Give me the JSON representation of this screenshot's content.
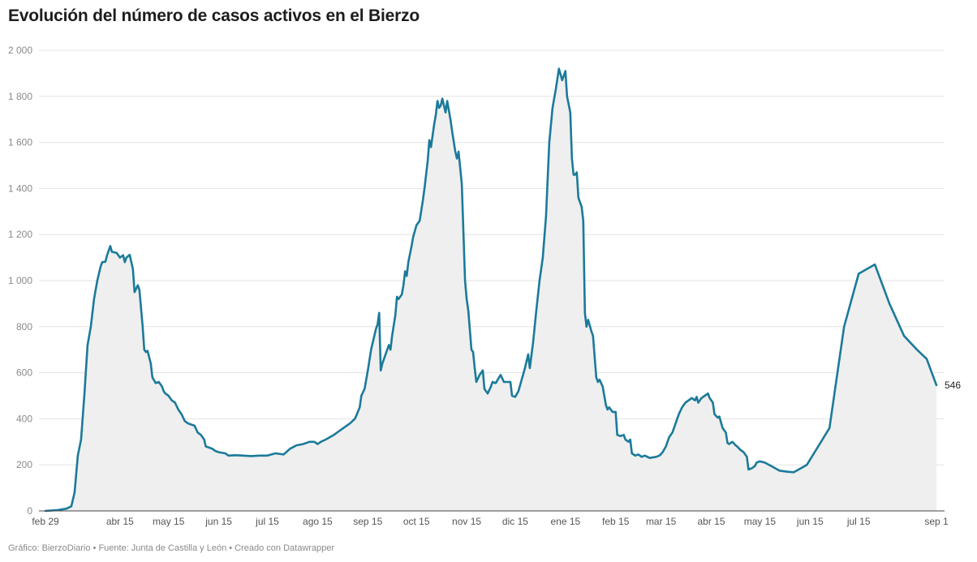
{
  "chart_data": {
    "type": "area",
    "title": "Evolución del número de casos activos en el Bierzo",
    "xlabel": "",
    "ylabel": "",
    "ylim": [
      0,
      2000
    ],
    "yticks": [
      0,
      200,
      400,
      600,
      800,
      1000,
      1200,
      1400,
      1600,
      1800,
      2000
    ],
    "ytick_labels": [
      "0",
      "200",
      "400",
      "600",
      "800",
      "1 000",
      "1 200",
      "1 400",
      "1 600",
      "1 800",
      "2 000"
    ],
    "xlim": [
      "2020-02-29",
      "2021-09-01"
    ],
    "xticks": [
      {
        "date": "2020-02-29",
        "label": "feb 29"
      },
      {
        "date": "2020-04-15",
        "label": "abr 15"
      },
      {
        "date": "2020-05-15",
        "label": "may 15"
      },
      {
        "date": "2020-06-15",
        "label": "jun 15"
      },
      {
        "date": "2020-07-15",
        "label": "jul 15"
      },
      {
        "date": "2020-08-15",
        "label": "ago 15"
      },
      {
        "date": "2020-09-15",
        "label": "sep 15"
      },
      {
        "date": "2020-10-15",
        "label": "oct 15"
      },
      {
        "date": "2020-11-15",
        "label": "nov 15"
      },
      {
        "date": "2020-12-15",
        "label": "dic 15"
      },
      {
        "date": "2021-01-15",
        "label": "ene 15"
      },
      {
        "date": "2021-02-15",
        "label": "feb 15"
      },
      {
        "date": "2021-03-15",
        "label": "mar 15"
      },
      {
        "date": "2021-04-15",
        "label": "abr 15"
      },
      {
        "date": "2021-05-15",
        "label": "may 15"
      },
      {
        "date": "2021-06-15",
        "label": "jun 15"
      },
      {
        "date": "2021-07-15",
        "label": "jul 15"
      },
      {
        "date": "2021-09-01",
        "label": "sep 1"
      }
    ],
    "grid": true,
    "series": [
      {
        "name": "",
        "color": "#1b7a9a",
        "fill": "#efefef",
        "end_label": "546",
        "points": [
          [
            "2020-02-29",
            0
          ],
          [
            "2020-03-07",
            3
          ],
          [
            "2020-03-13",
            10
          ],
          [
            "2020-03-16",
            20
          ],
          [
            "2020-03-18",
            80
          ],
          [
            "2020-03-20",
            240
          ],
          [
            "2020-03-22",
            310
          ],
          [
            "2020-03-24",
            500
          ],
          [
            "2020-03-26",
            720
          ],
          [
            "2020-03-28",
            800
          ],
          [
            "2020-03-30",
            920
          ],
          [
            "2020-04-01",
            1000
          ],
          [
            "2020-04-03",
            1060
          ],
          [
            "2020-04-04",
            1080
          ],
          [
            "2020-04-06",
            1082
          ],
          [
            "2020-04-07",
            1110
          ],
          [
            "2020-04-09",
            1150
          ],
          [
            "2020-04-10",
            1125
          ],
          [
            "2020-04-13",
            1120
          ],
          [
            "2020-04-15",
            1100
          ],
          [
            "2020-04-17",
            1110
          ],
          [
            "2020-04-18",
            1080
          ],
          [
            "2020-04-19",
            1100
          ],
          [
            "2020-04-21",
            1112
          ],
          [
            "2020-04-23",
            1050
          ],
          [
            "2020-04-24",
            950
          ],
          [
            "2020-04-26",
            980
          ],
          [
            "2020-04-27",
            960
          ],
          [
            "2020-04-29",
            800
          ],
          [
            "2020-04-30",
            700
          ],
          [
            "2020-05-01",
            690
          ],
          [
            "2020-05-02",
            695
          ],
          [
            "2020-05-04",
            640
          ],
          [
            "2020-05-05",
            580
          ],
          [
            "2020-05-07",
            555
          ],
          [
            "2020-05-09",
            560
          ],
          [
            "2020-05-11",
            540
          ],
          [
            "2020-05-12",
            520
          ],
          [
            "2020-05-13",
            510
          ],
          [
            "2020-05-15",
            500
          ],
          [
            "2020-05-17",
            480
          ],
          [
            "2020-05-19",
            470
          ],
          [
            "2020-05-21",
            440
          ],
          [
            "2020-05-23",
            420
          ],
          [
            "2020-05-25",
            390
          ],
          [
            "2020-05-27",
            380
          ],
          [
            "2020-05-29",
            375
          ],
          [
            "2020-05-31",
            370
          ],
          [
            "2020-06-02",
            340
          ],
          [
            "2020-06-04",
            330
          ],
          [
            "2020-06-06",
            310
          ],
          [
            "2020-06-07",
            280
          ],
          [
            "2020-06-09",
            275
          ],
          [
            "2020-06-11",
            270
          ],
          [
            "2020-06-13",
            260
          ],
          [
            "2020-06-15",
            255
          ],
          [
            "2020-06-19",
            250
          ],
          [
            "2020-06-21",
            240
          ],
          [
            "2020-06-25",
            242
          ],
          [
            "2020-06-30",
            240
          ],
          [
            "2020-07-05",
            238
          ],
          [
            "2020-07-10",
            240
          ],
          [
            "2020-07-15",
            240
          ],
          [
            "2020-07-20",
            250
          ],
          [
            "2020-07-25",
            245
          ],
          [
            "2020-07-29",
            270
          ],
          [
            "2020-08-02",
            285
          ],
          [
            "2020-08-06",
            290
          ],
          [
            "2020-08-10",
            300
          ],
          [
            "2020-08-13",
            300
          ],
          [
            "2020-08-15",
            290
          ],
          [
            "2020-08-17",
            300
          ],
          [
            "2020-08-20",
            310
          ],
          [
            "2020-08-25",
            330
          ],
          [
            "2020-08-28",
            345
          ],
          [
            "2020-09-01",
            365
          ],
          [
            "2020-09-04",
            380
          ],
          [
            "2020-09-07",
            400
          ],
          [
            "2020-09-08",
            415
          ],
          [
            "2020-09-10",
            450
          ],
          [
            "2020-09-11",
            500
          ],
          [
            "2020-09-13",
            530
          ],
          [
            "2020-09-15",
            610
          ],
          [
            "2020-09-17",
            700
          ],
          [
            "2020-09-19",
            760
          ],
          [
            "2020-09-20",
            790
          ],
          [
            "2020-09-21",
            810
          ],
          [
            "2020-09-22",
            860
          ],
          [
            "2020-09-23",
            610
          ],
          [
            "2020-09-24",
            640
          ],
          [
            "2020-09-26",
            680
          ],
          [
            "2020-09-28",
            720
          ],
          [
            "2020-09-29",
            700
          ],
          [
            "2020-09-30",
            760
          ],
          [
            "2020-10-02",
            850
          ],
          [
            "2020-10-03",
            930
          ],
          [
            "2020-10-04",
            920
          ],
          [
            "2020-10-06",
            940
          ],
          [
            "2020-10-07",
            980
          ],
          [
            "2020-10-08",
            1040
          ],
          [
            "2020-10-09",
            1020
          ],
          [
            "2020-10-10",
            1080
          ],
          [
            "2020-10-12",
            1150
          ],
          [
            "2020-10-13",
            1190
          ],
          [
            "2020-10-15",
            1240
          ],
          [
            "2020-10-17",
            1260
          ],
          [
            "2020-10-19",
            1350
          ],
          [
            "2020-10-20",
            1400
          ],
          [
            "2020-10-22",
            1520
          ],
          [
            "2020-10-23",
            1610
          ],
          [
            "2020-10-24",
            1580
          ],
          [
            "2020-10-26",
            1680
          ],
          [
            "2020-10-27",
            1720
          ],
          [
            "2020-10-28",
            1780
          ],
          [
            "2020-10-29",
            1750
          ],
          [
            "2020-10-30",
            1760
          ],
          [
            "2020-10-31",
            1790
          ],
          [
            "2020-11-01",
            1760
          ],
          [
            "2020-11-02",
            1730
          ],
          [
            "2020-11-03",
            1780
          ],
          [
            "2020-11-05",
            1700
          ],
          [
            "2020-11-06",
            1650
          ],
          [
            "2020-11-08",
            1560
          ],
          [
            "2020-11-09",
            1530
          ],
          [
            "2020-11-10",
            1560
          ],
          [
            "2020-11-12",
            1420
          ],
          [
            "2020-11-14",
            1000
          ],
          [
            "2020-11-15",
            920
          ],
          [
            "2020-11-16",
            870
          ],
          [
            "2020-11-18",
            700
          ],
          [
            "2020-11-19",
            690
          ],
          [
            "2020-11-20",
            620
          ],
          [
            "2020-11-21",
            560
          ],
          [
            "2020-11-23",
            590
          ],
          [
            "2020-11-25",
            610
          ],
          [
            "2020-11-26",
            530
          ],
          [
            "2020-11-28",
            510
          ],
          [
            "2020-11-30",
            540
          ],
          [
            "2020-12-01",
            560
          ],
          [
            "2020-12-03",
            555
          ],
          [
            "2020-12-05",
            580
          ],
          [
            "2020-12-06",
            590
          ],
          [
            "2020-12-08",
            560
          ],
          [
            "2020-12-10",
            560
          ],
          [
            "2020-12-12",
            560
          ],
          [
            "2020-12-13",
            500
          ],
          [
            "2020-12-15",
            495
          ],
          [
            "2020-12-17",
            520
          ],
          [
            "2020-12-19",
            570
          ],
          [
            "2020-12-21",
            620
          ],
          [
            "2020-12-23",
            680
          ],
          [
            "2020-12-24",
            620
          ],
          [
            "2020-12-26",
            730
          ],
          [
            "2020-12-28",
            870
          ],
          [
            "2020-12-30",
            1000
          ],
          [
            "2021-01-01",
            1100
          ],
          [
            "2021-01-03",
            1280
          ],
          [
            "2021-01-05",
            1600
          ],
          [
            "2021-01-07",
            1750
          ],
          [
            "2021-01-09",
            1830
          ],
          [
            "2021-01-11",
            1920
          ],
          [
            "2021-01-13",
            1870
          ],
          [
            "2021-01-15",
            1910
          ],
          [
            "2021-01-16",
            1800
          ],
          [
            "2021-01-18",
            1730
          ],
          [
            "2021-01-19",
            1530
          ],
          [
            "2021-01-20",
            1460
          ],
          [
            "2021-01-21",
            1460
          ],
          [
            "2021-01-22",
            1470
          ],
          [
            "2021-01-23",
            1360
          ],
          [
            "2021-01-25",
            1320
          ],
          [
            "2021-01-26",
            1260
          ],
          [
            "2021-01-27",
            860
          ],
          [
            "2021-01-28",
            800
          ],
          [
            "2021-01-29",
            830
          ],
          [
            "2021-01-31",
            780
          ],
          [
            "2021-02-01",
            760
          ],
          [
            "2021-02-03",
            580
          ],
          [
            "2021-02-04",
            560
          ],
          [
            "2021-02-05",
            570
          ],
          [
            "2021-02-07",
            540
          ],
          [
            "2021-02-08",
            500
          ],
          [
            "2021-02-09",
            460
          ],
          [
            "2021-02-10",
            440
          ],
          [
            "2021-02-11",
            450
          ],
          [
            "2021-02-13",
            430
          ],
          [
            "2021-02-15",
            430
          ],
          [
            "2021-02-16",
            330
          ],
          [
            "2021-02-18",
            325
          ],
          [
            "2021-02-20",
            330
          ],
          [
            "2021-02-21",
            310
          ],
          [
            "2021-02-23",
            300
          ],
          [
            "2021-02-24",
            310
          ],
          [
            "2021-02-25",
            250
          ],
          [
            "2021-02-27",
            240
          ],
          [
            "2021-03-01",
            245
          ],
          [
            "2021-03-03",
            235
          ],
          [
            "2021-03-05",
            240
          ],
          [
            "2021-03-08",
            230
          ],
          [
            "2021-03-12",
            235
          ],
          [
            "2021-03-14",
            240
          ],
          [
            "2021-03-16",
            255
          ],
          [
            "2021-03-18",
            280
          ],
          [
            "2021-03-20",
            320
          ],
          [
            "2021-03-22",
            340
          ],
          [
            "2021-03-24",
            380
          ],
          [
            "2021-03-26",
            420
          ],
          [
            "2021-03-28",
            450
          ],
          [
            "2021-03-30",
            470
          ],
          [
            "2021-04-01",
            480
          ],
          [
            "2021-04-03",
            490
          ],
          [
            "2021-04-05",
            480
          ],
          [
            "2021-04-06",
            495
          ],
          [
            "2021-04-07",
            470
          ],
          [
            "2021-04-09",
            490
          ],
          [
            "2021-04-11",
            500
          ],
          [
            "2021-04-13",
            510
          ],
          [
            "2021-04-14",
            490
          ],
          [
            "2021-04-16",
            470
          ],
          [
            "2021-04-17",
            420
          ],
          [
            "2021-04-19",
            405
          ],
          [
            "2021-04-20",
            410
          ],
          [
            "2021-04-22",
            360
          ],
          [
            "2021-04-24",
            340
          ],
          [
            "2021-04-25",
            295
          ],
          [
            "2021-04-26",
            290
          ],
          [
            "2021-04-28",
            300
          ],
          [
            "2021-04-30",
            285
          ],
          [
            "2021-05-01",
            280
          ],
          [
            "2021-05-03",
            265
          ],
          [
            "2021-05-05",
            255
          ],
          [
            "2021-05-07",
            235
          ],
          [
            "2021-05-08",
            180
          ],
          [
            "2021-05-10",
            185
          ],
          [
            "2021-05-12",
            195
          ],
          [
            "2021-05-13",
            210
          ],
          [
            "2021-05-15",
            215
          ],
          [
            "2021-05-18",
            210
          ],
          [
            "2021-05-22",
            195
          ],
          [
            "2021-05-27",
            175
          ],
          [
            "2021-06-01",
            170
          ],
          [
            "2021-06-05",
            168
          ],
          [
            "2021-06-13",
            200
          ],
          [
            "2021-06-20",
            280
          ],
          [
            "2021-06-27",
            360
          ],
          [
            "2021-07-06",
            800
          ],
          [
            "2021-07-15",
            1030
          ],
          [
            "2021-07-25",
            1070
          ],
          [
            "2021-08-03",
            900
          ],
          [
            "2021-08-12",
            760
          ],
          [
            "2021-08-20",
            700
          ],
          [
            "2021-08-26",
            660
          ],
          [
            "2021-09-01",
            546
          ]
        ]
      }
    ],
    "legend": "none"
  },
  "footer": {
    "text": "Gráfico: BierzoDiario • Fuente: Junta de Castilla y León • Creado con Datawrapper"
  }
}
